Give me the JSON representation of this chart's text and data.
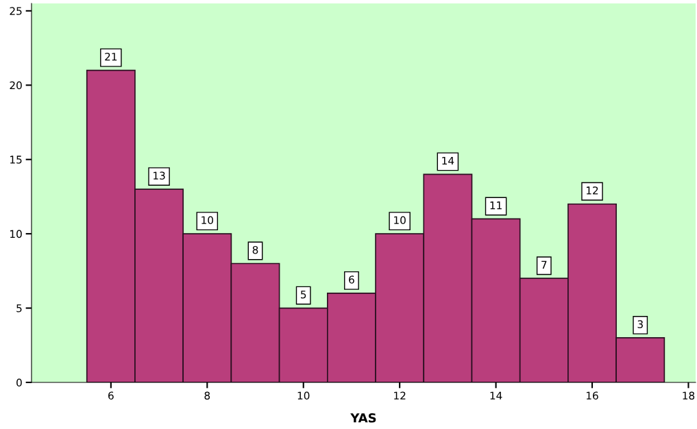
{
  "chart_data": {
    "type": "histogram",
    "xlabel": "YAS",
    "bins": [
      5.5,
      6.5,
      7.5,
      8.5,
      9.5,
      10.5,
      11.5,
      12.5,
      13.5,
      14.5,
      15.5,
      16.5,
      17.5
    ],
    "values": [
      21,
      13,
      10,
      8,
      5,
      6,
      10,
      14,
      11,
      7,
      12,
      3
    ],
    "color": "#b93e7c",
    "data_labels": true,
    "xlim": [
      4.35,
      18.15
    ],
    "xticks": [
      6,
      8,
      10,
      12,
      14,
      16,
      18
    ],
    "ylim": [
      0,
      25.5
    ],
    "yticks": [
      0,
      5,
      10,
      15,
      20,
      25
    ],
    "grid": false
  }
}
